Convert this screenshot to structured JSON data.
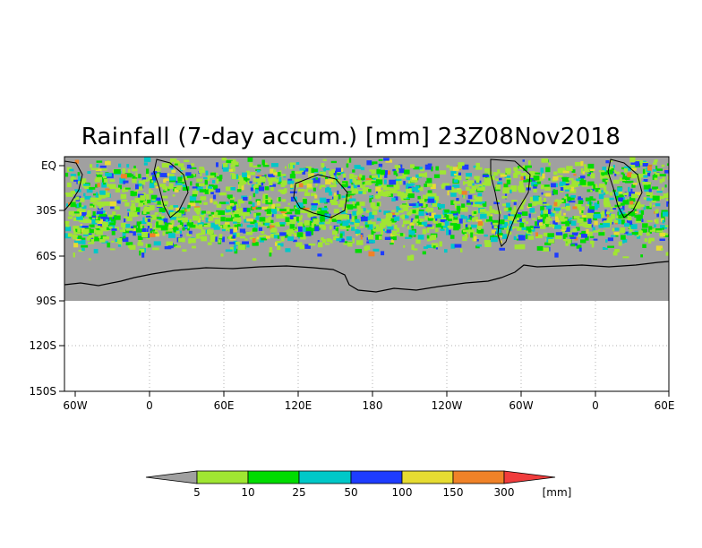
{
  "title": "Rainfall (7-day accum.) [mm] 23Z08Nov2018",
  "map": {
    "lat_labels": [
      "EQ",
      "30S",
      "60S",
      "90S",
      "120S",
      "150S"
    ],
    "lon_labels": [
      "60W",
      "0",
      "60E",
      "120E",
      "180",
      "120W",
      "60W",
      "0",
      "60E"
    ],
    "colors": {
      "no_rain": "#a0a0a0",
      "land_outline": "#000000",
      "background": "#ffffff"
    }
  },
  "legend": {
    "unit": "[mm]",
    "thresholds": [
      "5",
      "10",
      "25",
      "50",
      "100",
      "150",
      "300"
    ],
    "colors": [
      "#a0a0a0",
      "#a0e632",
      "#00dc00",
      "#00c8c8",
      "#1e3cff",
      "#e6dc32",
      "#f08228",
      "#f03c3c"
    ]
  }
}
